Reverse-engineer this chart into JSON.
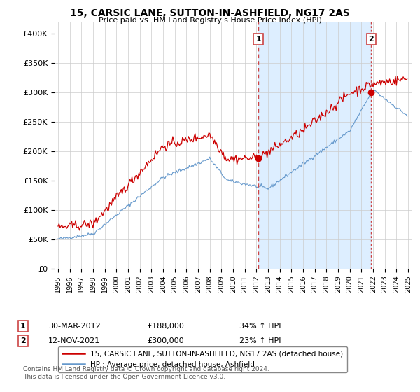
{
  "title": "15, CARSIC LANE, SUTTON-IN-ASHFIELD, NG17 2AS",
  "subtitle": "Price paid vs. HM Land Registry's House Price Index (HPI)",
  "ylim": [
    0,
    420000
  ],
  "yticks": [
    0,
    50000,
    100000,
    150000,
    200000,
    250000,
    300000,
    350000,
    400000
  ],
  "ytick_labels": [
    "£0",
    "£50K",
    "£100K",
    "£150K",
    "£200K",
    "£250K",
    "£300K",
    "£350K",
    "£400K"
  ],
  "legend_label_red": "15, CARSIC LANE, SUTTON-IN-ASHFIELD, NG17 2AS (detached house)",
  "legend_label_blue": "HPI: Average price, detached house, Ashfield",
  "transaction1_date": "30-MAR-2012",
  "transaction1_price": 188000,
  "transaction1_hpi": "34% ↑ HPI",
  "transaction2_date": "12-NOV-2021",
  "transaction2_price": 300000,
  "transaction2_hpi": "23% ↑ HPI",
  "footnote": "Contains HM Land Registry data © Crown copyright and database right 2024.\nThis data is licensed under the Open Government Licence v3.0.",
  "red_color": "#cc0000",
  "blue_color": "#6699cc",
  "shade_color": "#ddeeff",
  "background_color": "#ffffff",
  "grid_color": "#cccccc",
  "dashed_color": "#cc4444"
}
